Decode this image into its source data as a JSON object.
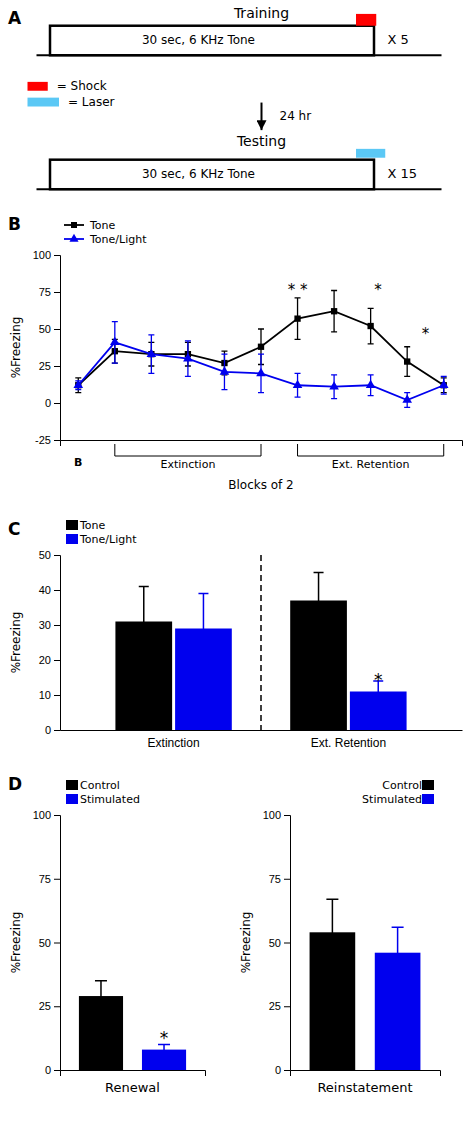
{
  "chart_data": [
    {
      "type": "diagram",
      "panel_label": "A",
      "training_title": "Training",
      "training_text": "30 sec, 6 KHz Tone",
      "training_repeat": "X 5",
      "testing_title": "Testing",
      "testing_text": "30 sec, 6 KHz Tone",
      "testing_repeat": "X 15",
      "arrow_text": "24 hr",
      "shock_label": "= Shock",
      "shock_color": "#FF0000",
      "laser_label": "= Laser",
      "laser_color": "#5BC8F5"
    },
    {
      "type": "line",
      "panel_label": "B",
      "ylabel": "%Freezing",
      "xlabel": "Blocks of 2",
      "x": [
        0,
        1,
        2,
        3,
        4,
        5,
        6,
        7,
        8,
        9,
        10
      ],
      "xlim": [
        -0.5,
        10.5
      ],
      "ylim": [
        -25,
        100
      ],
      "yticks": [
        -25,
        0,
        25,
        50,
        75,
        100
      ],
      "tick_labels": "y",
      "legend": "upper left",
      "series": [
        {
          "name": "Tone",
          "color": "#000000",
          "marker": "square",
          "values": [
            12,
            35,
            33,
            33,
            27,
            38,
            57,
            62,
            52,
            28,
            12
          ],
          "errors": [
            5,
            8,
            8,
            8,
            8,
            12,
            14,
            14,
            12,
            10,
            5
          ]
        },
        {
          "name": "Tone/Light",
          "color": "#0000EE",
          "marker": "triangle",
          "values": [
            12,
            41,
            33,
            30,
            21,
            20,
            12,
            11,
            12,
            2,
            12
          ],
          "errors": [
            3,
            14,
            13,
            12,
            12,
            13,
            8,
            8,
            7,
            5,
            6
          ]
        }
      ],
      "annotations": [
        {
          "text": "* *",
          "x": 6,
          "y": 73
        },
        {
          "text": "*",
          "x": 8.2,
          "y": 73
        },
        {
          "text": "*",
          "x": 9.5,
          "y": 43
        }
      ],
      "x_markers": [
        {
          "text": "B",
          "x": 0
        }
      ],
      "brackets": [
        {
          "label": "Extinction",
          "x": [
            1,
            5
          ]
        },
        {
          "label": "Ext. Retention",
          "x": [
            6,
            10
          ]
        }
      ]
    },
    {
      "type": "bar",
      "panel_label": "C",
      "ylabel": "%Freezing",
      "categories": [
        "Extinction",
        "Ext. Retention"
      ],
      "ylim": [
        0,
        50
      ],
      "yticks": [
        0,
        10,
        20,
        30,
        40,
        50
      ],
      "legend": "upper left",
      "series": [
        {
          "name": "Tone",
          "color": "#000000",
          "values": [
            31,
            37
          ],
          "errors": [
            10,
            8
          ]
        },
        {
          "name": "Tone/Light",
          "color": "#0000EE",
          "values": [
            29,
            11
          ],
          "errors": [
            10,
            3
          ]
        }
      ],
      "annotations": [
        {
          "text": "*",
          "x": "Ext. Retention",
          "series": "Tone/Light",
          "y": 15.5
        }
      ]
    },
    {
      "type": "bar",
      "panel_label": "D",
      "ylabel": "%Freezing",
      "xlabel": "Renewal",
      "categories": [
        "Control",
        "Stimulated"
      ],
      "values": [
        29,
        8
      ],
      "errors": [
        6,
        2
      ],
      "colors": [
        "#000000",
        "#0000EE"
      ],
      "ylim": [
        0,
        100
      ],
      "yticks": [
        0,
        25,
        50,
        75,
        100
      ],
      "tick_labels": "y",
      "legend": "upper left",
      "annotations": [
        {
          "text": "*",
          "x": "Stimulated",
          "y": 14
        }
      ]
    },
    {
      "type": "bar",
      "ylabel": "%Freezing",
      "xlabel": "Reinstatement",
      "categories": [
        "Control",
        "Stimulated"
      ],
      "values": [
        54,
        46
      ],
      "errors": [
        13,
        10
      ],
      "colors": [
        "#000000",
        "#0000EE"
      ],
      "ylim": [
        0,
        100
      ],
      "yticks": [
        0,
        25,
        50,
        75,
        100
      ],
      "tick_labels": "y",
      "legend": "upper right"
    }
  ]
}
